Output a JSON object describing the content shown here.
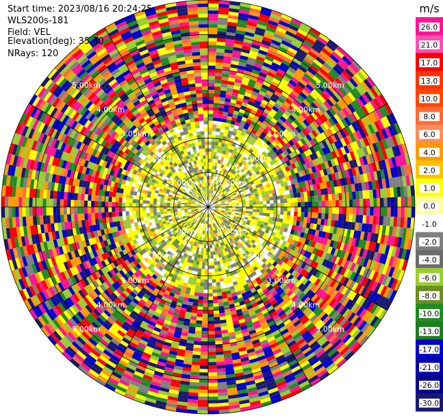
{
  "info": {
    "start_time": "Start time: 2023/08/16 20:24:25",
    "instrument": "WLS200s-181",
    "field": "Field: VEL",
    "elevation": "Elevation(deg): 35.30",
    "nrays": "NRays: 120"
  },
  "chart_data": {
    "type": "heatmap",
    "projection": "polar-ppi",
    "field": "VEL",
    "units": "m/s",
    "n_rays": 120,
    "n_gates": 60,
    "max_range_km": 6.0,
    "range_ring_labels": [
      {
        "ring": 1,
        "label": "1.00km"
      },
      {
        "ring": 2,
        "label": "2.00km"
      },
      {
        "ring": 3,
        "label": "3.00km"
      },
      {
        "ring": 4,
        "label": "4.00km"
      },
      {
        "ring": 5,
        "label": "5.00km"
      }
    ],
    "colorbar": {
      "title": "m/s",
      "ticks": [
        "26.0",
        "21.0",
        "17.0",
        "13.0",
        "10.0",
        "8.0",
        "6.0",
        "4.0",
        "2.0",
        "1.0",
        "0.0",
        "-1.0",
        "-2.0",
        "-4.0",
        "-6.0",
        "-8.0",
        "-10.0",
        "-13.0",
        "-17.0",
        "-21.0",
        "-26.0",
        "-30.0"
      ],
      "colors": [
        "#ff1493",
        "#ff4faf",
        "#ff0000",
        "#ff3300",
        "#ff4500",
        "#ff6a3a",
        "#ff8c5a",
        "#ff9a00",
        "#ffc000",
        "#ffff00",
        "#ffff99",
        "#ffffff",
        "#808080",
        "#6b6b6b",
        "#9acd32",
        "#6b8e23",
        "#228b22",
        "#1e7e1e",
        "#0000cd",
        "#0000aa",
        "#00008b",
        "#191970"
      ]
    },
    "pattern": {
      "inner_range_km": 2.5,
      "inner_palette": [
        {
          "color": "#ffff00",
          "w": 5
        },
        {
          "color": "#808080",
          "w": 3
        },
        {
          "color": "#9acd32",
          "w": 3
        },
        {
          "color": "#6b8e23",
          "w": 1
        },
        {
          "color": "#ffc000",
          "w": 1
        },
        {
          "color": "#ff8c5a",
          "w": 0.5
        }
      ],
      "outer_palette": [
        {
          "color": "#ff1493",
          "w": 1
        },
        {
          "color": "#ff0000",
          "w": 1
        },
        {
          "color": "#ff9a00",
          "w": 1
        },
        {
          "color": "#ffff00",
          "w": 1
        },
        {
          "color": "#9acd32",
          "w": 1
        },
        {
          "color": "#228b22",
          "w": 1
        },
        {
          "color": "#0000cd",
          "w": 1
        },
        {
          "color": "#191970",
          "w": 1
        },
        {
          "color": "#808080",
          "w": 0.6
        },
        {
          "color": "#ff6a3a",
          "w": 0.6
        }
      ],
      "seed": 181
    }
  }
}
